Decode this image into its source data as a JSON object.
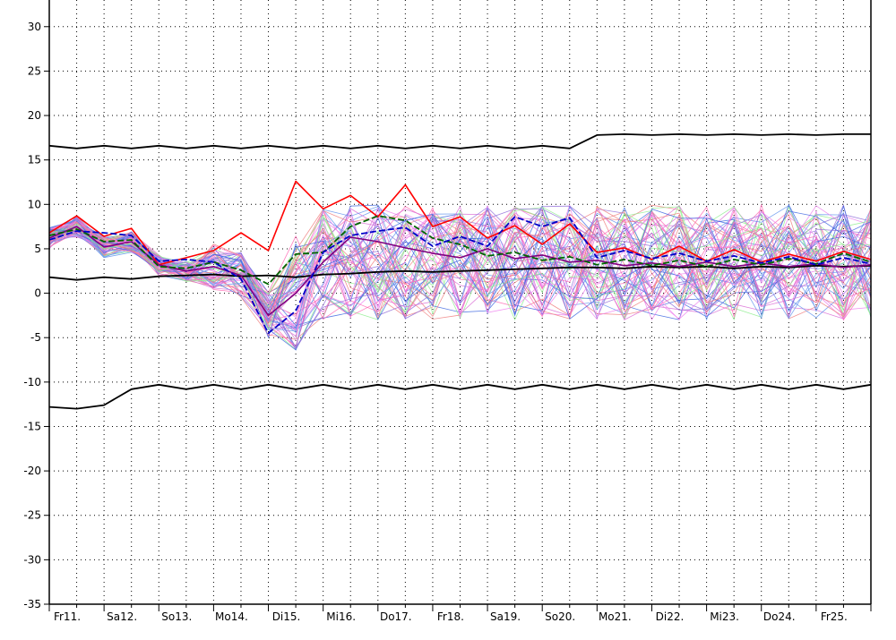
{
  "chart_data": {
    "type": "line",
    "title": "",
    "xlabel": "",
    "ylabel": "",
    "ylim": [
      -35,
      33
    ],
    "yticks": [
      30,
      25,
      20,
      15,
      10,
      5,
      0,
      -5,
      -10,
      -15,
      -20,
      -25,
      -30,
      -35
    ],
    "yticklabels": [
      "30",
      "25",
      "20",
      "15",
      "10",
      "5",
      "0",
      "-5",
      "-10",
      "-15",
      "-20",
      "-25",
      "-30",
      "-35"
    ],
    "x_index_range": [
      0,
      15
    ],
    "xtick_labels": [
      "Fr11.",
      "Sa12.",
      "So13.",
      "Mo14.",
      "Di15.",
      "Mi16.",
      "Do17.",
      "Fr18.",
      "Sa19.",
      "So20.",
      "Mo21.",
      "Di22.",
      "Mi23.",
      "Do24.",
      "Fr25."
    ],
    "grid": true,
    "series": [
      {
        "color": "#000000",
        "style": "solid",
        "x": [
          0,
          0.5,
          1,
          1.5,
          2,
          2.5,
          3,
          3.5,
          4,
          4.5,
          5,
          5.5,
          6,
          6.5,
          7,
          7.5,
          8,
          8.5,
          9,
          9.5,
          10,
          10.5,
          11,
          11.5,
          12,
          12.5,
          13,
          13.5,
          14,
          14.5,
          15
        ],
        "values": [
          16.6,
          16.3,
          16.6,
          16.3,
          16.6,
          16.3,
          16.6,
          16.3,
          16.6,
          16.3,
          16.6,
          16.3,
          16.6,
          16.3,
          16.6,
          16.3,
          16.6,
          16.3,
          16.6,
          16.3,
          17.8,
          17.9,
          17.8,
          17.9,
          17.8,
          17.9,
          17.8,
          17.9,
          17.8,
          17.9,
          17.9
        ]
      },
      {
        "color": "#000000",
        "style": "solid",
        "x": [
          0,
          0.5,
          1,
          1.5,
          2,
          2.5,
          3,
          3.5,
          4,
          4.5,
          5,
          5.5,
          6,
          6.5,
          7,
          7.5,
          8,
          8.5,
          9,
          9.5,
          10,
          10.5,
          11,
          11.5,
          12,
          12.5,
          13,
          13.5,
          14,
          14.5,
          15
        ],
        "values": [
          -12.8,
          -13,
          -12.6,
          -10.8,
          -10.3,
          -10.8,
          -10.3,
          -10.8,
          -10.3,
          -10.8,
          -10.3,
          -10.8,
          -10.3,
          -10.8,
          -10.3,
          -10.8,
          -10.3,
          -10.8,
          -10.3,
          -10.8,
          -10.3,
          -10.8,
          -10.3,
          -10.8,
          -10.3,
          -10.8,
          -10.3,
          -10.8,
          -10.3,
          -10.8,
          -10.3
        ]
      },
      {
        "color": "#000000",
        "style": "solid",
        "x": [
          0,
          0.5,
          1,
          1.5,
          2,
          2.5,
          3,
          3.5,
          4,
          4.5,
          5,
          5.5,
          6,
          6.5,
          7,
          7.5,
          8,
          8.5,
          9,
          9.5,
          10,
          10.5,
          11,
          11.5,
          12,
          12.5,
          13,
          13.5,
          14,
          14.5,
          15
        ],
        "values": [
          1.8,
          1.5,
          1.8,
          1.6,
          1.9,
          2,
          2.1,
          1.9,
          2,
          1.8,
          2.1,
          2.2,
          2.4,
          2.5,
          2.4,
          2.5,
          2.6,
          2.7,
          2.8,
          2.9,
          2.9,
          2.8,
          3,
          2.9,
          3,
          2.8,
          3,
          2.9,
          3.1,
          3,
          3.1
        ]
      },
      {
        "color": "#ff0000",
        "style": "solid",
        "width": 1.6,
        "x": [
          0,
          0.5,
          1,
          1.5,
          2,
          2.5,
          3,
          3.5,
          4,
          4.5,
          5,
          5.5,
          6,
          6.5,
          7,
          7.5,
          8,
          8.5,
          9,
          9.5,
          10,
          10.5,
          11,
          11.5,
          12,
          12.5,
          13,
          13.5,
          14,
          14.5,
          15
        ],
        "values": [
          6.8,
          8.7,
          6.4,
          7.3,
          3.2,
          4,
          4.8,
          6.8,
          4.8,
          12.6,
          9.5,
          11,
          8.6,
          12.2,
          7.5,
          8.6,
          6.2,
          7.6,
          5.5,
          7.8,
          4.6,
          5.1,
          3.8,
          5.3,
          3.6,
          4.9,
          3.5,
          4.4,
          3.6,
          4.7,
          3.8
        ]
      },
      {
        "color": "#800080",
        "style": "solid",
        "width": 1.6,
        "x": [
          0,
          0.5,
          1,
          1.5,
          2,
          2.5,
          3,
          3.5,
          4,
          4.5,
          5,
          5.5,
          6,
          6.5,
          7,
          7.5,
          8,
          8.5,
          9,
          9.5,
          10,
          10.5,
          11,
          11.5,
          12,
          12.5,
          13,
          13.5,
          14,
          14.5,
          15
        ],
        "values": [
          6.2,
          7.5,
          5.2,
          5.8,
          3.2,
          2.5,
          3,
          2,
          -2.5,
          0,
          3.5,
          6.3,
          5.8,
          5.1,
          4.5,
          4,
          5,
          3.9,
          4.3,
          3.5,
          3.7,
          3.1,
          3.4,
          3,
          3.5,
          3,
          3.4,
          3,
          3.3,
          2.9,
          3.2
        ]
      },
      {
        "color": "#006400",
        "style": "dashed",
        "x": [
          0,
          0.5,
          1,
          1.5,
          2,
          2.5,
          3,
          3.5,
          4,
          4.5,
          5,
          5.5,
          6,
          6.5,
          7,
          7.5,
          8,
          8.5,
          9,
          9.5,
          10,
          10.5,
          11,
          11.5,
          12,
          12.5,
          13,
          13.5,
          14,
          14.5,
          15
        ],
        "values": [
          6.5,
          7.2,
          5.8,
          6,
          3,
          2.8,
          3.5,
          2.6,
          1,
          4.4,
          4.6,
          7.5,
          8.7,
          8.2,
          6.2,
          5.5,
          4.2,
          4.6,
          3.7,
          4.1,
          3.2,
          3.8,
          3.1,
          3.7,
          3,
          3.8,
          3.2,
          3.9,
          3.3,
          4.5,
          3.5
        ]
      },
      {
        "color": "#0000c8",
        "style": "dashed",
        "x": [
          0,
          0.5,
          1,
          1.5,
          2,
          2.5,
          3,
          3.5,
          4,
          4.5,
          5,
          5.5,
          6,
          6.5,
          7,
          7.5,
          8,
          8.5,
          9,
          9.5,
          10,
          10.5,
          11,
          11.5,
          12,
          12.5,
          13,
          13.5,
          14,
          14.5,
          15
        ],
        "values": [
          6,
          7,
          6.8,
          6.5,
          3.6,
          3.8,
          3.5,
          1.6,
          -4.5,
          -2,
          4.6,
          6.5,
          7,
          7.4,
          5.3,
          6.4,
          5.3,
          8.6,
          7.5,
          8.5,
          4,
          4.8,
          3.9,
          4.5,
          3.6,
          4.2,
          3.4,
          4.1,
          3.2,
          4,
          3.3
        ]
      }
    ],
    "ensemble": {
      "colors": [
        "#6495ed",
        "#ee82ee",
        "#ff69b4",
        "#90ee90",
        "#f08080",
        "#4169e1",
        "#da70d6",
        "#9370db"
      ],
      "count": 62,
      "band_note": "spread roughly -6 to 15 after Di15."
    }
  }
}
